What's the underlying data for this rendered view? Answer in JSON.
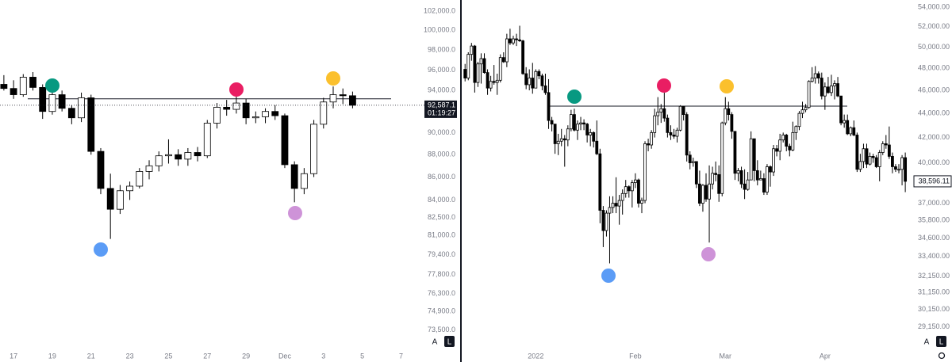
{
  "toolbar": {
    "buttons": [
      "A",
      "L"
    ]
  },
  "chart_data": [
    {
      "type": "candlestick",
      "log_scale": true,
      "grid": false,
      "up_color": "#ffffff",
      "down_color": "#000000",
      "outline_color": "#000000",
      "hline": 93200,
      "last_value_label": "92,587.1",
      "countdown": "01:19:27",
      "xlim": [
        -0.4,
        42.6
      ],
      "xticks": [
        {
          "value": 1,
          "label": "17"
        },
        {
          "value": 5,
          "label": "19"
        },
        {
          "value": 9,
          "label": "21"
        },
        {
          "value": 13,
          "label": "23"
        },
        {
          "value": 17,
          "label": "25"
        },
        {
          "value": 21,
          "label": "27"
        },
        {
          "value": 25,
          "label": "29"
        },
        {
          "value": 29,
          "label": "Dec"
        },
        {
          "value": 33,
          "label": "3"
        },
        {
          "value": 37,
          "label": "5"
        },
        {
          "value": 41,
          "label": "7"
        }
      ],
      "ylim": [
        72100,
        103170
      ],
      "yticks": [
        {
          "value": 102000,
          "label": "102,000.0"
        },
        {
          "value": 100000,
          "label": "100,000.0"
        },
        {
          "value": 98000,
          "label": "98,000.0"
        },
        {
          "value": 96000,
          "label": "96,000.0"
        },
        {
          "value": 94000,
          "label": "94,000.0"
        },
        {
          "value": 90000,
          "label": "90,000.0"
        },
        {
          "value": 88000,
          "label": "88,000.0"
        },
        {
          "value": 86000,
          "label": "86,000.0"
        },
        {
          "value": 84000,
          "label": "84,000.0"
        },
        {
          "value": 82500,
          "label": "82,500.0"
        },
        {
          "value": 81000,
          "label": "81,000.0"
        },
        {
          "value": 79400,
          "label": "79,400.0"
        },
        {
          "value": 77800,
          "label": "77,800.0"
        },
        {
          "value": 76300,
          "label": "76,300.0"
        },
        {
          "value": 74900,
          "label": "74,900.0"
        },
        {
          "value": 73500,
          "label": "73,500.0"
        }
      ],
      "open": [
        94600,
        94200,
        93600,
        95300,
        94300,
        92000,
        93600,
        92300,
        91400,
        93300,
        88300,
        85000,
        83200,
        84800,
        85200,
        86500,
        87000,
        87900,
        88000,
        87600,
        88200,
        87900,
        90900,
        92400,
        92200,
        92800,
        91400,
        91500,
        92000,
        91600,
        87100,
        85000,
        86300,
        90800,
        92900,
        93600,
        93500
      ],
      "high": [
        95500,
        95000,
        95600,
        95800,
        94600,
        94200,
        94000,
        92600,
        93800,
        93600,
        88600,
        86300,
        85300,
        85600,
        86800,
        87500,
        88300,
        89400,
        88500,
        88600,
        88700,
        91200,
        92800,
        93100,
        94300,
        93200,
        92000,
        92300,
        92600,
        91800,
        87400,
        86800,
        91200,
        93300,
        94400,
        94200,
        93900
      ],
      "low": [
        94000,
        93200,
        93400,
        94000,
        91300,
        91700,
        92000,
        90800,
        91000,
        88000,
        84500,
        80700,
        82800,
        84000,
        85000,
        85800,
        86500,
        87200,
        87000,
        87000,
        87400,
        87700,
        90400,
        91600,
        91800,
        90800,
        90900,
        90900,
        91200,
        86800,
        83800,
        84500,
        86000,
        90400,
        92300,
        92700,
        92300
      ],
      "close": [
        94200,
        93600,
        95300,
        94300,
        92000,
        93600,
        92300,
        91400,
        93300,
        88300,
        85000,
        83200,
        84800,
        85200,
        86500,
        87000,
        87900,
        88000,
        87600,
        88200,
        87900,
        90900,
        92400,
        92200,
        92800,
        91400,
        91500,
        92000,
        91600,
        87100,
        85000,
        86300,
        90800,
        92900,
        93600,
        93500,
        92587.1
      ]
    },
    {
      "type": "candlestick",
      "log_scale": true,
      "grid": false,
      "up_color": "#ffffff",
      "down_color": "#000000",
      "outline_color": "#000000",
      "hline": 44620,
      "last_value_label": "38,596.11",
      "xlim": [
        -0.3,
        138.7
      ],
      "xticks": [
        {
          "value": 22,
          "label": "2022"
        },
        {
          "value": 53,
          "label": "Feb"
        },
        {
          "value": 81,
          "label": "Mar"
        },
        {
          "value": 112,
          "label": "Apr"
        }
      ],
      "ylim": [
        27960,
        54750
      ],
      "yticks": [
        {
          "value": 54000,
          "label": "54,000.00"
        },
        {
          "value": 52000,
          "label": "52,000.00"
        },
        {
          "value": 50000,
          "label": "50,000.00"
        },
        {
          "value": 48000,
          "label": "48,000.00"
        },
        {
          "value": 46000,
          "label": "46,000.00"
        },
        {
          "value": 44000,
          "label": "44,000.00"
        },
        {
          "value": 42000,
          "label": "42,000.00"
        },
        {
          "value": 40000,
          "label": "40,000.00"
        },
        {
          "value": 37000,
          "label": "37,000.00"
        },
        {
          "value": 35800,
          "label": "35,800.00"
        },
        {
          "value": 34600,
          "label": "34,600.00"
        },
        {
          "value": 33400,
          "label": "33,400.00"
        },
        {
          "value": 32150,
          "label": "32,150.00"
        },
        {
          "value": 31150,
          "label": "31,150.00"
        },
        {
          "value": 30150,
          "label": "30,150.00"
        },
        {
          "value": 29150,
          "label": "29,150.00"
        }
      ],
      "open": [
        47900,
        47100,
        49300,
        50100,
        46700,
        48400,
        48900,
        47600,
        46200,
        46800,
        46700,
        46900,
        49000,
        48600,
        50800,
        50400,
        50800,
        50700,
        50600,
        47500,
        46500,
        47100,
        46200,
        47700,
        47300,
        46400,
        45800,
        43400,
        43100,
        41500,
        41700,
        41900,
        41800,
        42700,
        43900,
        42600,
        43100,
        43200,
        43100,
        42200,
        42400,
        41700,
        40700,
        36500,
        35100,
        36300,
        36700,
        37000,
        36800,
        37200,
        37700,
        38200,
        37900,
        38500,
        38700,
        37000,
        37200,
        41500,
        41400,
        42400,
        43800,
        44100,
        44400,
        43600,
        42400,
        42200,
        42100,
        42600,
        44600,
        43900,
        40600,
        40000,
        40100,
        38400,
        37000,
        38300,
        37300,
        38400,
        39200,
        39100,
        37700,
        43200,
        44400,
        43900,
        42500,
        39200,
        39400,
        38400,
        38000,
        38700,
        41900,
        39400,
        38700,
        38800,
        37800,
        39700,
        39300,
        41100,
        40900,
        41800,
        42200,
        41300,
        41000,
        42400,
        42900,
        44000,
        44300,
        44500,
        46800,
        47100,
        47500,
        47100,
        45500,
        46300,
        45800,
        46400,
        46600,
        45500,
        43200,
        43400,
        42300,
        42800,
        42200,
        39500,
        40100,
        41100,
        39900,
        40500,
        40400,
        39700,
        40800,
        41500,
        41400,
        40500,
        39700,
        39500,
        39500,
        40400
      ],
      "high": [
        48400,
        49500,
        50400,
        50200,
        48600,
        49400,
        49400,
        47900,
        47300,
        48300,
        47500,
        49300,
        49500,
        51300,
        51800,
        51100,
        51300,
        52100,
        50700,
        48100,
        47900,
        48500,
        47900,
        47900,
        47500,
        47500,
        47000,
        43700,
        43100,
        42300,
        42700,
        42200,
        43000,
        44300,
        44400,
        43400,
        43700,
        43500,
        43200,
        42700,
        42500,
        43400,
        41100,
        36800,
        36500,
        37500,
        37500,
        38900,
        37600,
        38000,
        38700,
        38300,
        38700,
        39200,
        38800,
        37400,
        41700,
        41900,
        42600,
        44400,
        45400,
        44800,
        45800,
        43900,
        43000,
        42700,
        42800,
        44700,
        44500,
        44100,
        40900,
        40400,
        40100,
        39400,
        38400,
        39200,
        39800,
        39700,
        40100,
        39800,
        43300,
        45400,
        45000,
        44100,
        42500,
        39600,
        39700,
        39500,
        39300,
        42500,
        41900,
        40200,
        39400,
        39200,
        39900,
        39800,
        41400,
        41400,
        42300,
        42400,
        42300,
        41500,
        43300,
        43000,
        44200,
        45000,
        44800,
        46900,
        48100,
        48200,
        47700,
        47600,
        46700,
        47200,
        47400,
        46900,
        47200,
        45500,
        43900,
        43900,
        42900,
        43400,
        42400,
        40700,
        41500,
        41500,
        40800,
        40700,
        40600,
        41000,
        41700,
        42200,
        42900,
        40800,
        39900,
        39900,
        40600,
        40800
      ],
      "low": [
        46800,
        46900,
        48700,
        45800,
        46300,
        46600,
        47500,
        45600,
        45900,
        46500,
        45600,
        46700,
        48500,
        48100,
        50200,
        50200,
        50100,
        50500,
        47400,
        46100,
        46000,
        45700,
        46200,
        47000,
        46000,
        45600,
        42700,
        42500,
        40700,
        40600,
        41300,
        39700,
        41300,
        42500,
        42500,
        41800,
        42600,
        42600,
        41600,
        41300,
        41200,
        40600,
        35600,
        34000,
        34700,
        32950,
        36300,
        36300,
        35500,
        36200,
        37400,
        37400,
        36700,
        38100,
        36700,
        36300,
        37000,
        40900,
        41100,
        42000,
        43000,
        43200,
        43300,
        42000,
        41800,
        41900,
        41600,
        42500,
        43400,
        40100,
        39500,
        39700,
        38100,
        36800,
        36400,
        37100,
        34300,
        38000,
        38600,
        37100,
        37500,
        43000,
        43400,
        41900,
        38700,
        38600,
        38100,
        37300,
        37900,
        38700,
        38600,
        38300,
        38700,
        37600,
        37600,
        38200,
        39000,
        40500,
        40200,
        41600,
        40900,
        40500,
        40900,
        41800,
        42600,
        43600,
        44100,
        44400,
        46700,
        46600,
        46600,
        45200,
        44300,
        45700,
        45500,
        45200,
        45400,
        43000,
        42800,
        42200,
        42100,
        42100,
        39300,
        39300,
        39600,
        39600,
        39800,
        40000,
        39600,
        38600,
        40600,
        41100,
        40300,
        39200,
        39300,
        39200,
        38300,
        37800
      ],
      "close": [
        47100,
        49300,
        50100,
        46700,
        48400,
        48900,
        47600,
        46200,
        46800,
        46700,
        46900,
        49000,
        48600,
        50800,
        50400,
        50800,
        50700,
        50600,
        47500,
        46500,
        47100,
        46200,
        47700,
        47300,
        46400,
        45800,
        43400,
        43100,
        41500,
        41700,
        41900,
        41800,
        42700,
        43900,
        42600,
        43100,
        43200,
        43100,
        42200,
        42400,
        41700,
        40700,
        36500,
        35100,
        36300,
        36700,
        37000,
        36800,
        37200,
        37700,
        38200,
        37900,
        38500,
        38700,
        37000,
        37200,
        41500,
        41400,
        42400,
        43800,
        44100,
        44400,
        43600,
        42400,
        42200,
        42100,
        42600,
        44600,
        43900,
        40600,
        40000,
        40100,
        38400,
        37000,
        38300,
        37300,
        38400,
        39200,
        39100,
        37700,
        43200,
        44400,
        43900,
        42500,
        39200,
        39400,
        38400,
        38000,
        38700,
        41900,
        39400,
        38700,
        38800,
        37800,
        39700,
        39300,
        41100,
        40900,
        41800,
        42200,
        41300,
        41000,
        42400,
        42900,
        44000,
        44300,
        44500,
        46800,
        47100,
        47500,
        47100,
        45500,
        46300,
        45800,
        46400,
        46600,
        45500,
        43200,
        43400,
        42300,
        42800,
        42200,
        39500,
        40100,
        41100,
        39900,
        40500,
        40400,
        39700,
        40800,
        41500,
        41400,
        40500,
        39700,
        39500,
        39500,
        40400,
        38596.11
      ]
    }
  ]
}
